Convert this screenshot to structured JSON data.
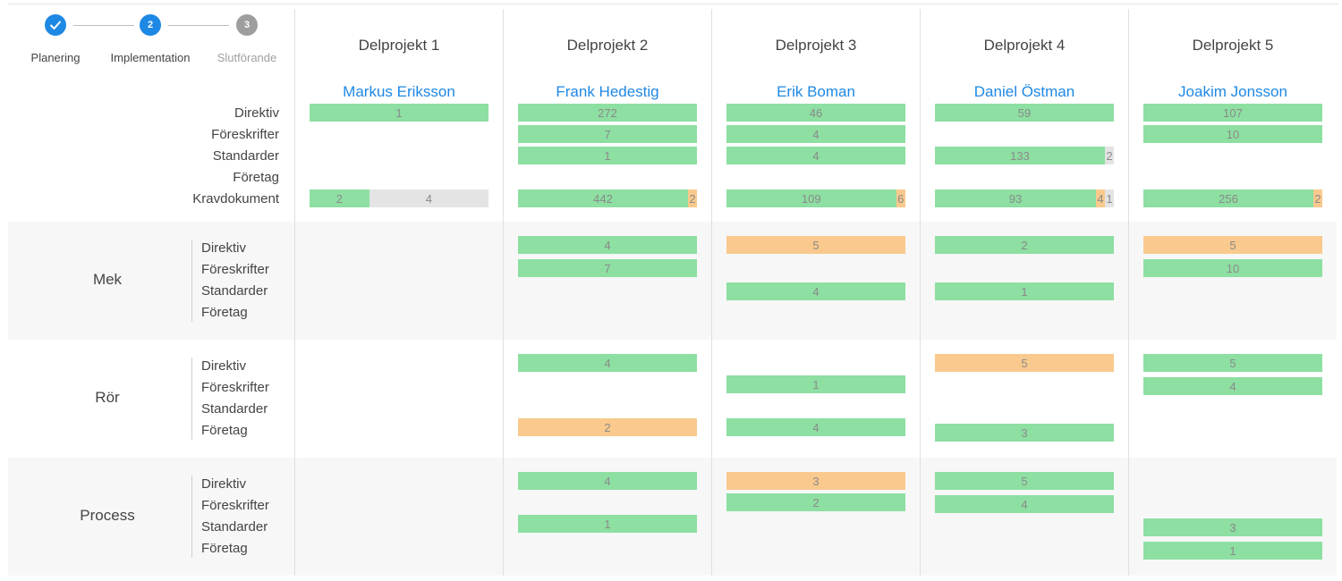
{
  "stepper": {
    "steps": [
      {
        "label": "Planering",
        "state": "done",
        "number": ""
      },
      {
        "label": "Implementation",
        "state": "active",
        "number": "2"
      },
      {
        "label": "Slutförande",
        "state": "pending",
        "number": "3"
      }
    ]
  },
  "colors": {
    "green": "#8ddfa2",
    "orange": "#f9c98d",
    "gray": "#e4e4e4",
    "link": "#1e88e5",
    "step_active": "#1e88e5",
    "step_pending": "#9e9e9e"
  },
  "projects": [
    {
      "title": "Delprojekt 1",
      "manager": "Markus Eriksson"
    },
    {
      "title": "Delprojekt 2",
      "manager": "Frank Hedestig"
    },
    {
      "title": "Delprojekt 3",
      "manager": "Erik Boman"
    },
    {
      "title": "Delprojekt 4",
      "manager": "Daniel Östman"
    },
    {
      "title": "Delprojekt 5",
      "manager": "Joakim Jonsson"
    }
  ],
  "summary": {
    "labels": [
      "Direktiv",
      "Föreskrifter",
      "Standarder",
      "Företag",
      "Kravdokument"
    ]
  },
  "groups": [
    {
      "name": "Mek",
      "labels": [
        "Direktiv",
        "Föreskrifter",
        "Standarder",
        "Företag"
      ]
    },
    {
      "name": "Rör",
      "labels": [
        "Direktiv",
        "Föreskrifter",
        "Standarder",
        "Företag"
      ]
    },
    {
      "name": "Process",
      "labels": [
        "Direktiv",
        "Föreskrifter",
        "Standarder",
        "Företag"
      ]
    }
  ],
  "bars": [
    {
      "section": "summary",
      "row": 0,
      "project": 0,
      "segments": [
        {
          "value": 1,
          "color": "green"
        }
      ]
    },
    {
      "section": "summary",
      "row": 4,
      "project": 0,
      "segments": [
        {
          "value": 2,
          "color": "green"
        },
        {
          "value": 4,
          "color": "gray"
        }
      ]
    },
    {
      "section": "summary",
      "row": 0,
      "project": 1,
      "segments": [
        {
          "value": 272,
          "color": "green"
        }
      ]
    },
    {
      "section": "summary",
      "row": 1,
      "project": 1,
      "segments": [
        {
          "value": 7,
          "color": "green"
        }
      ]
    },
    {
      "section": "summary",
      "row": 2,
      "project": 1,
      "segments": [
        {
          "value": 1,
          "color": "green"
        }
      ]
    },
    {
      "section": "summary",
      "row": 4,
      "project": 1,
      "segments": [
        {
          "value": 442,
          "color": "green"
        },
        {
          "value": 2,
          "color": "orange"
        }
      ]
    },
    {
      "section": "summary",
      "row": 0,
      "project": 2,
      "segments": [
        {
          "value": 46,
          "color": "green"
        }
      ]
    },
    {
      "section": "summary",
      "row": 1,
      "project": 2,
      "segments": [
        {
          "value": 4,
          "color": "green"
        }
      ]
    },
    {
      "section": "summary",
      "row": 2,
      "project": 2,
      "segments": [
        {
          "value": 4,
          "color": "green"
        }
      ]
    },
    {
      "section": "summary",
      "row": 4,
      "project": 2,
      "segments": [
        {
          "value": 109,
          "color": "green"
        },
        {
          "value": 6,
          "color": "orange"
        }
      ]
    },
    {
      "section": "summary",
      "row": 0,
      "project": 3,
      "segments": [
        {
          "value": 59,
          "color": "green"
        }
      ]
    },
    {
      "section": "summary",
      "row": 2,
      "project": 3,
      "segments": [
        {
          "value": 133,
          "color": "green"
        },
        {
          "value": 2,
          "color": "gray"
        }
      ]
    },
    {
      "section": "summary",
      "row": 4,
      "project": 3,
      "segments": [
        {
          "value": 93,
          "color": "green"
        },
        {
          "value": 4,
          "color": "orange"
        },
        {
          "value": 1,
          "color": "gray"
        }
      ]
    },
    {
      "section": "summary",
      "row": 0,
      "project": 4,
      "segments": [
        {
          "value": 107,
          "color": "green"
        }
      ]
    },
    {
      "section": "summary",
      "row": 1,
      "project": 4,
      "segments": [
        {
          "value": 10,
          "color": "green"
        }
      ]
    },
    {
      "section": "summary",
      "row": 4,
      "project": 4,
      "segments": [
        {
          "value": 256,
          "color": "green"
        },
        {
          "value": 2,
          "color": "orange"
        }
      ]
    },
    {
      "section": "group",
      "group": 0,
      "row": 0,
      "project": 1,
      "segments": [
        {
          "value": 4,
          "color": "green"
        }
      ]
    },
    {
      "section": "group",
      "group": 0,
      "row": 1,
      "project": 1,
      "segments": [
        {
          "value": 7,
          "color": "green"
        }
      ]
    },
    {
      "section": "group",
      "group": 0,
      "row": 0,
      "project": 2,
      "segments": [
        {
          "value": 5,
          "color": "orange"
        }
      ]
    },
    {
      "section": "group",
      "group": 0,
      "row": 2,
      "project": 2,
      "segments": [
        {
          "value": 4,
          "color": "green"
        }
      ]
    },
    {
      "section": "group",
      "group": 0,
      "row": 0,
      "project": 3,
      "segments": [
        {
          "value": 2,
          "color": "green"
        }
      ]
    },
    {
      "section": "group",
      "group": 0,
      "row": 2,
      "project": 3,
      "segments": [
        {
          "value": 1,
          "color": "green"
        }
      ]
    },
    {
      "section": "group",
      "group": 0,
      "row": 0,
      "project": 4,
      "segments": [
        {
          "value": 5,
          "color": "orange"
        }
      ]
    },
    {
      "section": "group",
      "group": 0,
      "row": 1,
      "project": 4,
      "segments": [
        {
          "value": 10,
          "color": "green"
        }
      ]
    },
    {
      "section": "group",
      "group": 1,
      "row": 0,
      "project": 1,
      "segments": [
        {
          "value": 4,
          "color": "green"
        }
      ]
    },
    {
      "section": "group",
      "group": 1,
      "row": 3,
      "project": 1,
      "segments": [
        {
          "value": 2,
          "color": "orange"
        }
      ]
    },
    {
      "section": "group",
      "group": 1,
      "row": 1,
      "project": 2,
      "segments": [
        {
          "value": 1,
          "color": "green"
        }
      ]
    },
    {
      "section": "group",
      "group": 1,
      "row": 3,
      "project": 2,
      "segments": [
        {
          "value": 4,
          "color": "green"
        }
      ]
    },
    {
      "section": "group",
      "group": 1,
      "row": 0,
      "project": 3,
      "segments": [
        {
          "value": 5,
          "color": "orange"
        }
      ]
    },
    {
      "section": "group",
      "group": 1,
      "row": 3,
      "project": 3,
      "segments": [
        {
          "value": 3,
          "color": "green"
        }
      ]
    },
    {
      "section": "group",
      "group": 1,
      "row": 0,
      "project": 4,
      "segments": [
        {
          "value": 5,
          "color": "green"
        }
      ]
    },
    {
      "section": "group",
      "group": 1,
      "row": 1,
      "project": 4,
      "segments": [
        {
          "value": 4,
          "color": "green"
        }
      ]
    },
    {
      "section": "group",
      "group": 2,
      "row": 0,
      "project": 1,
      "segments": [
        {
          "value": 4,
          "color": "green"
        }
      ]
    },
    {
      "section": "group",
      "group": 2,
      "row": 2,
      "project": 1,
      "segments": [
        {
          "value": 1,
          "color": "green"
        }
      ]
    },
    {
      "section": "group",
      "group": 2,
      "row": 0,
      "project": 2,
      "segments": [
        {
          "value": 3,
          "color": "orange"
        }
      ]
    },
    {
      "section": "group",
      "group": 2,
      "row": 1,
      "project": 2,
      "segments": [
        {
          "value": 2,
          "color": "green"
        }
      ]
    },
    {
      "section": "group",
      "group": 2,
      "row": 0,
      "project": 3,
      "segments": [
        {
          "value": 5,
          "color": "green"
        }
      ]
    },
    {
      "section": "group",
      "group": 2,
      "row": 1,
      "project": 3,
      "segments": [
        {
          "value": 4,
          "color": "green"
        }
      ]
    },
    {
      "section": "group",
      "group": 2,
      "row": 2,
      "project": 4,
      "segments": [
        {
          "value": 3,
          "color": "green"
        }
      ]
    },
    {
      "section": "group",
      "group": 2,
      "row": 3,
      "project": 4,
      "segments": [
        {
          "value": 1,
          "color": "green"
        }
      ]
    }
  ]
}
